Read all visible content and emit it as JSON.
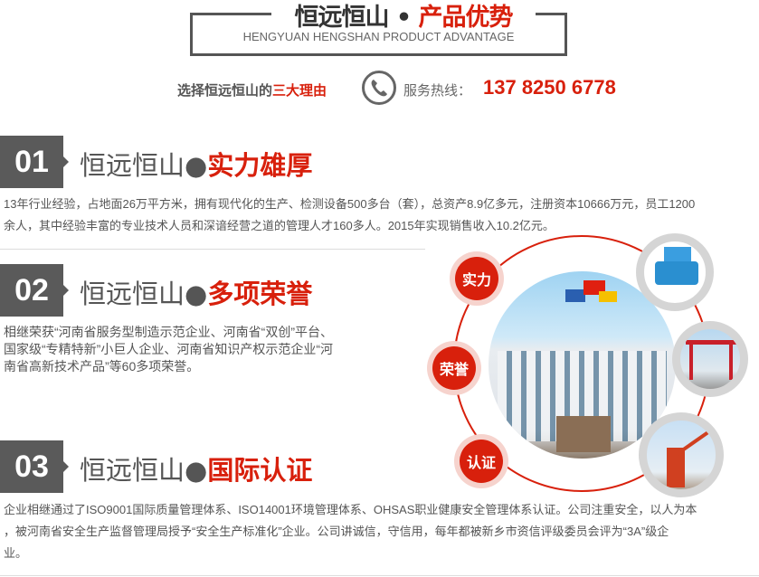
{
  "header": {
    "title_black": "恒远恒山",
    "title_sep": "•",
    "title_red": "产品优势",
    "subtitle": "HENGYUAN HENGSHAN PRODUCT ADVANTAGE",
    "reasons_prefix": "选择恒远恒山的",
    "reasons_red": "三大理由",
    "hotline_label": "服务热线：",
    "hotline_number": "137 8250 6778"
  },
  "sections": [
    {
      "number": "01",
      "title_black": "恒远恒山",
      "title_dot": "●",
      "title_red": "实力雄厚",
      "lines": [
        "13年行业经验，占地面26万平方米，拥有现代化的生产、检测设备500多台（套），总资产8.9亿多元，注册资本10666万元，员工1200",
        "余人，其中经验丰富的专业技术人员和深谙经营之道的管理人才160多人。2015年实现销售收入10.2亿元。"
      ]
    },
    {
      "number": "02",
      "title_black": "恒远恒山",
      "title_dot": "●",
      "title_red": "多项荣誉",
      "lines": [
        "相继荣获“河南省服务型制造示范企业、河南省“双创”平台、",
        "国家级“专精特新”小巨人企业、河南省知识产权示范企业“河",
        "南省高新技术产品”等60多项荣誉。"
      ]
    },
    {
      "number": "03",
      "title_black": "恒远恒山",
      "title_dot": "●",
      "title_red": "国际认证",
      "lines": [
        "企业相继通过了ISO9001国际质量管理体系、ISO14001环境管理体系、OHSAS职业健康安全管理体系认证。公司注重安全，以人为本",
        "，被河南省安全生产监督管理局授予“安全生产标准化”企业。公司讲诚信，守信用，每年都被新乡市资信评级委员会评为“3A”级企",
        "业。"
      ]
    }
  ],
  "graphic": {
    "badges": [
      "实力",
      "荣誉",
      "认证"
    ],
    "accent": "#d8200c"
  }
}
